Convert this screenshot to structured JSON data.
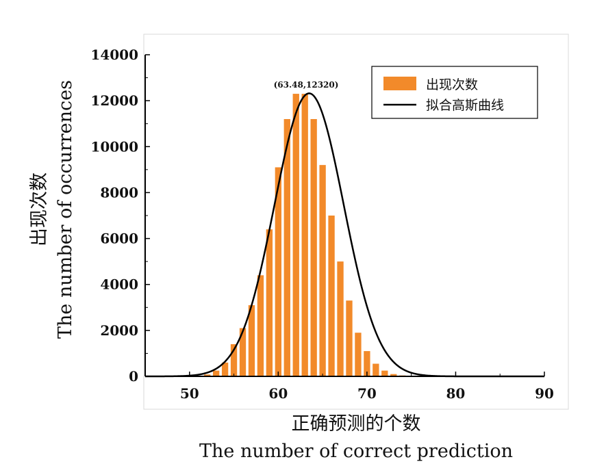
{
  "chart_data": {
    "type": "bar",
    "xlabel_cn": "正确预测的个数",
    "xlabel_en": "The number of correct prediction",
    "ylabel_cn": "出现次数",
    "ylabel_en": "The number of occurrences",
    "xlim": [
      45,
      90
    ],
    "ylim": [
      0,
      14000
    ],
    "x_ticks": [
      "50",
      "60",
      "70",
      "80",
      "90"
    ],
    "y_ticks": [
      "0",
      "2000",
      "4000",
      "6000",
      "8000",
      "10000",
      "12000",
      "14000"
    ],
    "legend": {
      "position": "top-right",
      "bar_label": "出现次数",
      "line_label": "拟合高斯曲线"
    },
    "annotation": "(63.48,12320)",
    "colors": {
      "bar": "#f28a2a",
      "curve": "#000000"
    },
    "bars": {
      "x": [
        52,
        53,
        54,
        55,
        56,
        57,
        58,
        59,
        60,
        61,
        62,
        63,
        64,
        65,
        66,
        67,
        68,
        69,
        70,
        71,
        72,
        73,
        74
      ],
      "values": [
        80,
        250,
        600,
        1400,
        2100,
        3100,
        4400,
        6400,
        9100,
        11200,
        12300,
        12300,
        11200,
        9200,
        7000,
        5000,
        3300,
        1900,
        1100,
        550,
        250,
        100,
        40
      ]
    },
    "curve": {
      "mean": 63.48,
      "sd": 3.9,
      "peak": 12320,
      "x_range": [
        45,
        90
      ]
    }
  }
}
